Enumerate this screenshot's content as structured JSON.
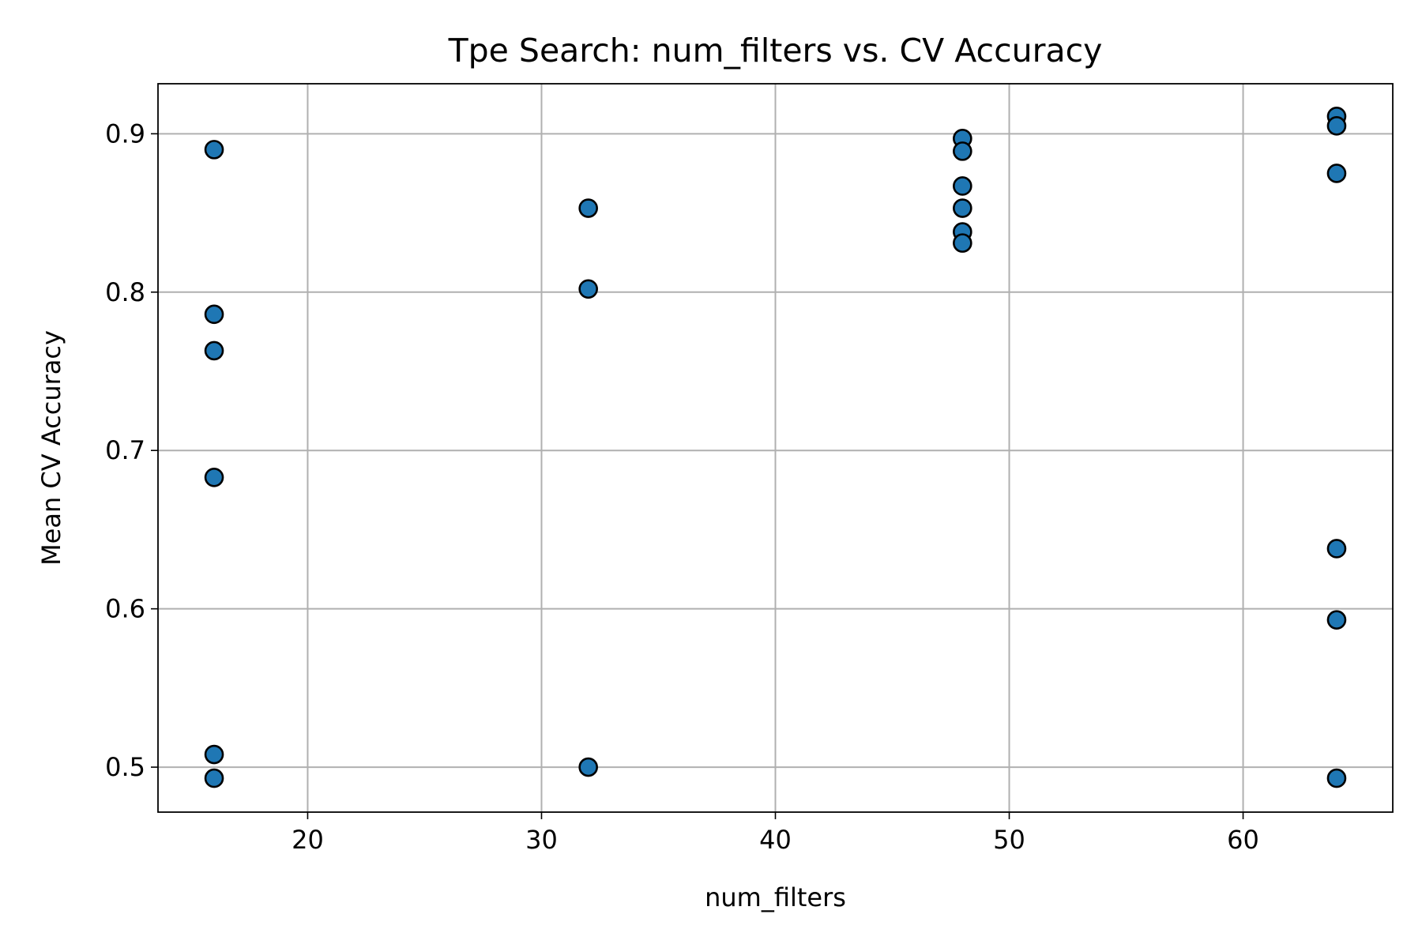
{
  "chart_data": {
    "type": "scatter",
    "title": "Tpe Search: num_filters vs. CV Accuracy",
    "xlabel": "num_filters",
    "ylabel": "Mean CV Accuracy",
    "xlim": [
      13.6,
      66.4
    ],
    "ylim": [
      0.4716,
      0.9316
    ],
    "xticks": [
      20,
      30,
      40,
      50,
      60
    ],
    "yticks": [
      0.5,
      0.6,
      0.7,
      0.8,
      0.9
    ],
    "xtick_labels": [
      "20",
      "30",
      "40",
      "50",
      "60"
    ],
    "ytick_labels": [
      "0.5",
      "0.6",
      "0.7",
      "0.8",
      "0.9"
    ],
    "grid": true,
    "legend": "none",
    "marker_color": "#1f77b4",
    "marker_edge_color": "#000000",
    "points": [
      {
        "x": 16,
        "y": 0.89
      },
      {
        "x": 16,
        "y": 0.786
      },
      {
        "x": 16,
        "y": 0.763
      },
      {
        "x": 16,
        "y": 0.683
      },
      {
        "x": 16,
        "y": 0.508
      },
      {
        "x": 16,
        "y": 0.493
      },
      {
        "x": 32,
        "y": 0.853
      },
      {
        "x": 32,
        "y": 0.802
      },
      {
        "x": 32,
        "y": 0.5
      },
      {
        "x": 48,
        "y": 0.897
      },
      {
        "x": 48,
        "y": 0.889
      },
      {
        "x": 48,
        "y": 0.867
      },
      {
        "x": 48,
        "y": 0.853
      },
      {
        "x": 48,
        "y": 0.838
      },
      {
        "x": 48,
        "y": 0.831
      },
      {
        "x": 64,
        "y": 0.911
      },
      {
        "x": 64,
        "y": 0.905
      },
      {
        "x": 64,
        "y": 0.875
      },
      {
        "x": 64,
        "y": 0.638
      },
      {
        "x": 64,
        "y": 0.593
      },
      {
        "x": 64,
        "y": 0.493
      }
    ]
  }
}
